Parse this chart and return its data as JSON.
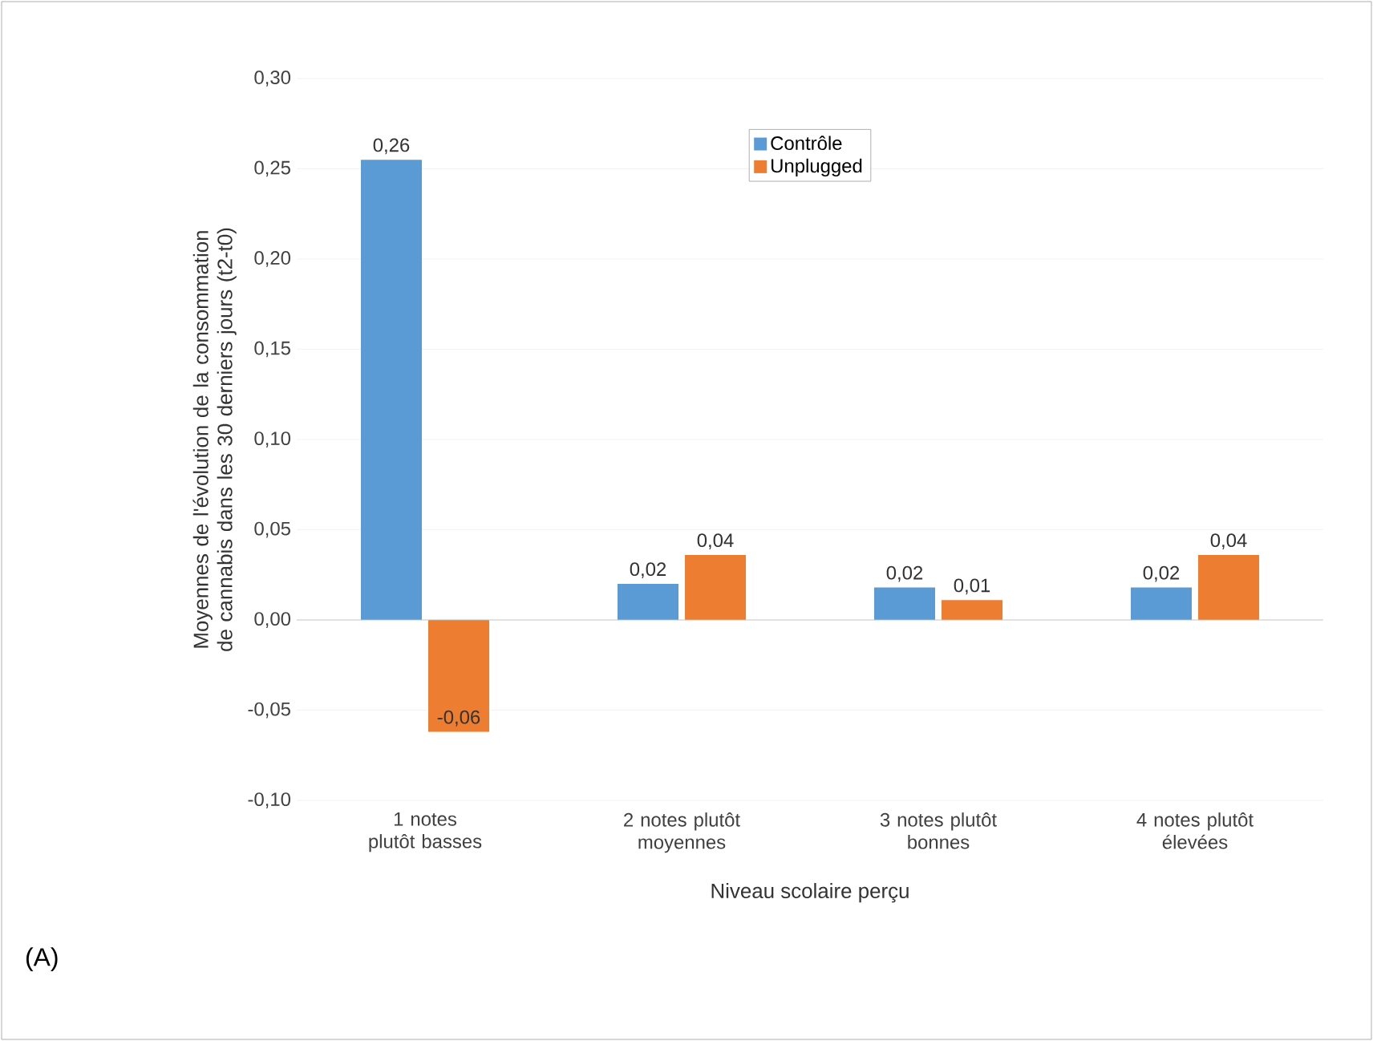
{
  "chart_data": {
    "type": "bar",
    "xlabel": "Niveau scolaire perçu",
    "ylabel": "Moyennes de l'évolution de la consommation de cannabis dans les 30 derniers jours (t2-t0)",
    "categories": [
      "1 notes plutôt basses",
      "2 notes plutôt moyennes",
      "3 notes plutôt bonnes",
      "4 notes plutôt élevées"
    ],
    "series": [
      {
        "name": "Contrôle",
        "color": "#5b9bd5",
        "values": [
          0.255,
          0.02,
          0.018,
          0.018
        ],
        "value_labels": [
          "0,26",
          "0,02",
          "0,02",
          "0,02"
        ]
      },
      {
        "name": "Unplugged",
        "color": "#ed7d31",
        "values": [
          -0.062,
          0.036,
          0.011,
          0.036
        ],
        "value_labels": [
          "-0,06",
          "0,04",
          "0,01",
          "0,04"
        ]
      }
    ],
    "ylim": [
      -0.1,
      0.3
    ],
    "yticks": [
      {
        "value": -0.1,
        "label": "-0,10"
      },
      {
        "value": -0.05,
        "label": "-0,05"
      },
      {
        "value": 0,
        "label": "0,00"
      },
      {
        "value": 0.05,
        "label": "0,05"
      },
      {
        "value": 0.1,
        "label": "0,10"
      },
      {
        "value": 0.15,
        "label": "0,15"
      },
      {
        "value": 0.2,
        "label": "0,20"
      },
      {
        "value": 0.25,
        "label": "0,25"
      },
      {
        "value": 0.3,
        "label": "0,30"
      }
    ],
    "legend": "top",
    "grid": "y",
    "annotations": [
      "(A)"
    ]
  }
}
